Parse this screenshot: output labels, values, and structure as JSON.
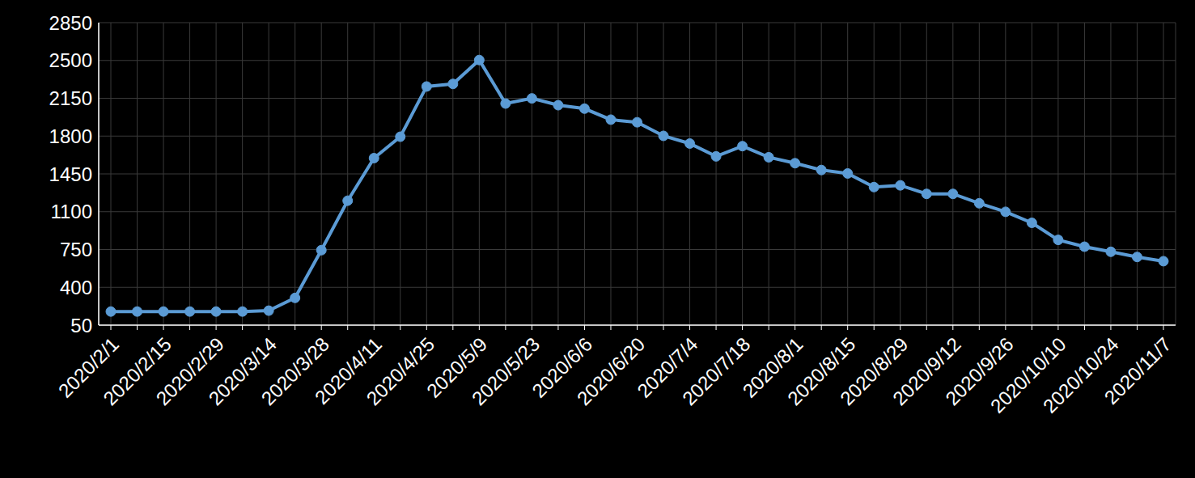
{
  "chart_data": {
    "type": "line",
    "categories": [
      "2020/2/1",
      null,
      "2020/2/15",
      null,
      "2020/2/29",
      null,
      "2020/3/14",
      null,
      "2020/3/28",
      null,
      "2020/4/11",
      null,
      "2020/4/25",
      null,
      "2020/5/9",
      null,
      "2020/5/23",
      null,
      "2020/6/6",
      null,
      "2020/6/20",
      null,
      "2020/7/4",
      null,
      "2020/7/18",
      null,
      "2020/8/1",
      null,
      "2020/8/15",
      null,
      "2020/8/29",
      null,
      "2020/9/12",
      null,
      "2020/9/26",
      null,
      "2020/10/10",
      null,
      "2020/10/24",
      null,
      "2020/11/7"
    ],
    "values": [
      176,
      176,
      176,
      176,
      176,
      176,
      184,
      302,
      744,
      1202,
      1596,
      1794,
      2259,
      2283,
      2504,
      2101,
      2149,
      2086,
      2054,
      1952,
      1928,
      1802,
      1731,
      1612,
      1707,
      1604,
      1549,
      1486,
      1454,
      1328,
      1344,
      1265,
      1265,
      1178,
      1099,
      997,
      839,
      776,
      729,
      681,
      642
    ],
    "color": "#5b9bd5",
    "ylim": [
      50,
      2850
    ],
    "yticks": [
      50,
      400,
      750,
      1100,
      1450,
      1800,
      2150,
      2500,
      2850
    ],
    "grid": true,
    "marker": "circle",
    "line_style": "solid"
  }
}
